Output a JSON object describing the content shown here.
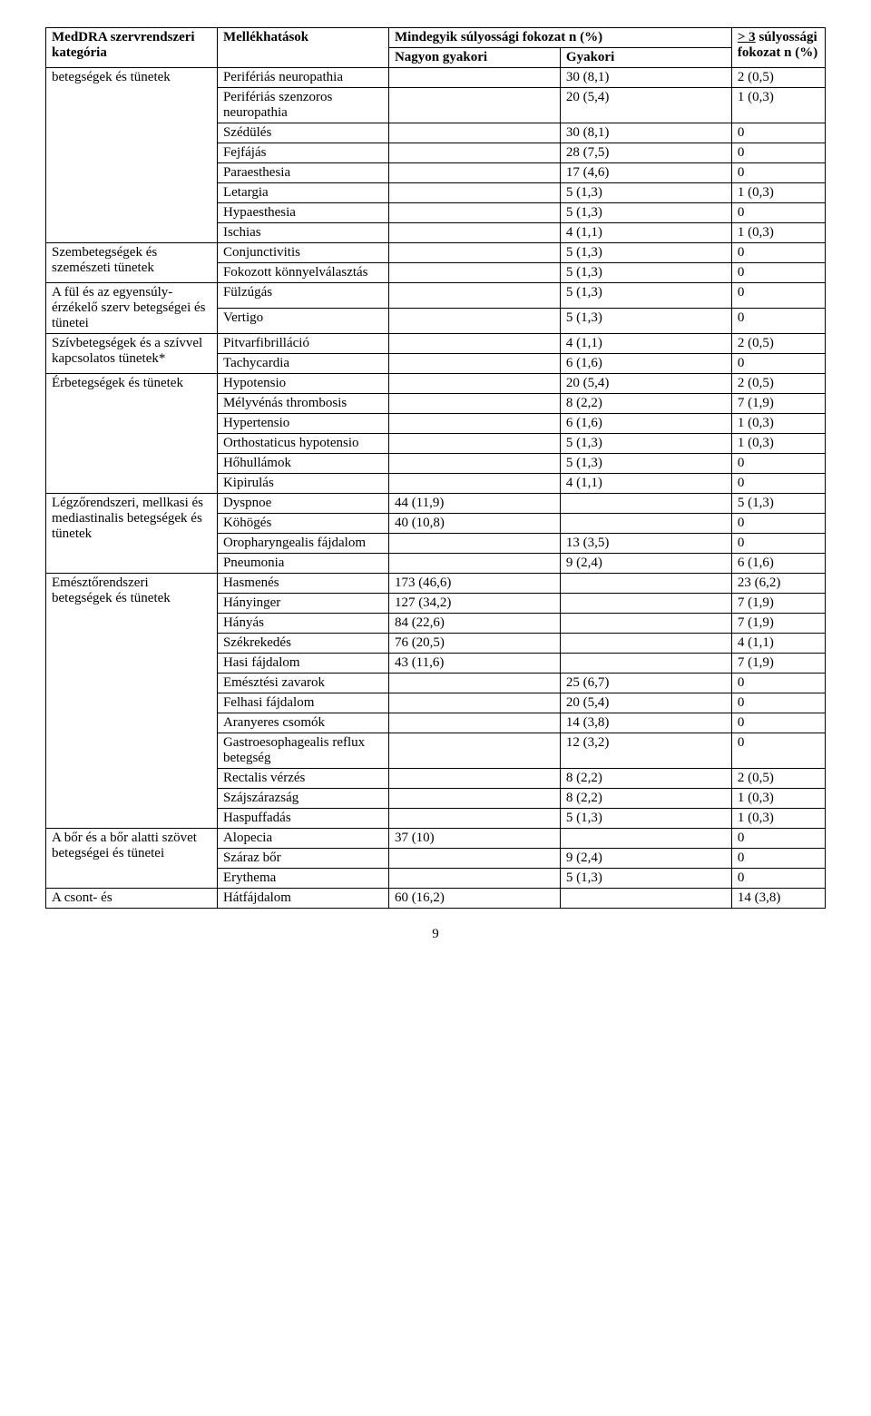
{
  "header": {
    "category": "MedDRA szervrendszeri kategória",
    "effect": "Mellékhatások",
    "all_grades": "Mindegyik súlyossági fokozat\nn (%)",
    "sev_prefix": "> 3",
    "sev_rest": "\nsúlyossági fokozat\nn (%)",
    "very_frequent": "Nagyon gyakori",
    "frequent": "Gyakori"
  },
  "groups": [
    {
      "category": "betegségek és tünetek",
      "rows": [
        {
          "e": "Perifériás neuropathia",
          "vf": "",
          "f": "30 (8,1)",
          "s": "2 (0,5)"
        },
        {
          "e": "Perifériás szenzoros neuropathia",
          "vf": "",
          "f": "20 (5,4)",
          "s": "1 (0,3)"
        },
        {
          "e": "Szédülés",
          "vf": "",
          "f": "30 (8,1)",
          "s": "0"
        },
        {
          "e": "Fejfájás",
          "vf": "",
          "f": "28 (7,5)",
          "s": "0"
        },
        {
          "e": "Paraesthesia",
          "vf": "",
          "f": "17 (4,6)",
          "s": "0"
        },
        {
          "e": "Letargia",
          "vf": "",
          "f": "5 (1,3)",
          "s": "1 (0,3)"
        },
        {
          "e": "Hypaesthesia",
          "vf": "",
          "f": "5 (1,3)",
          "s": "0"
        },
        {
          "e": "Ischias",
          "vf": "",
          "f": "4 (1,1)",
          "s": "1 (0,3)"
        }
      ]
    },
    {
      "category": "Szembetegségek és szemészeti tünetek",
      "rows": [
        {
          "e": "Conjunctivitis",
          "vf": "",
          "f": "5 (1,3)",
          "s": "0"
        },
        {
          "e": "Fokozott könnyelválasztás",
          "vf": "",
          "f": "5 (1,3)",
          "s": "0"
        }
      ]
    },
    {
      "category": "A fül és az egyensúly-érzékelő szerv betegségei és tünetei",
      "rows": [
        {
          "e": "Fülzúgás",
          "vf": "",
          "f": "5 (1,3)",
          "s": "0"
        },
        {
          "e": "Vertigo",
          "vf": "",
          "f": "5 (1,3)",
          "s": "0"
        }
      ]
    },
    {
      "category": "Szívbetegségek és a szívvel kapcsolatos tünetek*",
      "rows": [
        {
          "e": "Pitvarfibrilláció",
          "vf": "",
          "f": "4 (1,1)",
          "s": "2 (0,5)"
        },
        {
          "e": "Tachycardia",
          "vf": "",
          "f": "6 (1,6)",
          "s": "0"
        }
      ]
    },
    {
      "category": "Érbetegségek és tünetek",
      "rows": [
        {
          "e": "Hypotensio",
          "vf": "",
          "f": "20 (5,4)",
          "s": "2 (0,5)"
        },
        {
          "e": "Mélyvénás thrombosis",
          "vf": "",
          "f": "8 (2,2)",
          "s": "7 (1,9)"
        },
        {
          "e": "Hypertensio",
          "vf": "",
          "f": "6 (1,6)",
          "s": "1 (0,3)"
        },
        {
          "e": "Orthostaticus hypotensio",
          "vf": "",
          "f": "5 (1,3)",
          "s": "1 (0,3)"
        },
        {
          "e": "Hőhullámok",
          "vf": "",
          "f": "5 (1,3)",
          "s": "0"
        },
        {
          "e": "Kipirulás",
          "vf": "",
          "f": "4 (1,1)",
          "s": "0"
        }
      ]
    },
    {
      "category": "Légzőrendszeri, mellkasi és mediastinalis betegségek és tünetek",
      "rows": [
        {
          "e": "Dyspnoe",
          "vf": "44 (11,9)",
          "f": "",
          "s": "5 (1,3)"
        },
        {
          "e": "Köhögés",
          "vf": "40 (10,8)",
          "f": "",
          "s": "0"
        },
        {
          "e": "Oropharyngealis fájdalom",
          "vf": "",
          "f": "13 (3,5)",
          "s": "0"
        },
        {
          "e": "Pneumonia",
          "vf": "",
          "f": "9 (2,4)",
          "s": "6 (1,6)"
        }
      ]
    },
    {
      "category": "Emésztőrendszeri betegségek és tünetek",
      "rows": [
        {
          "e": "Hasmenés",
          "vf": "173 (46,6)",
          "f": "",
          "s": "23 (6,2)"
        },
        {
          "e": "Hányinger",
          "vf": "127 (34,2)",
          "f": "",
          "s": "7 (1,9)"
        },
        {
          "e": "Hányás",
          "vf": "84 (22,6)",
          "f": "",
          "s": "7 (1,9)"
        },
        {
          "e": "Székrekedés",
          "vf": "76 (20,5)",
          "f": "",
          "s": "4 (1,1)"
        },
        {
          "e": "Hasi fájdalom",
          "vf": "43 (11,6)",
          "f": "",
          "s": "7 (1,9)"
        },
        {
          "e": "Emésztési zavarok",
          "vf": "",
          "f": "25 (6,7)",
          "s": "0"
        },
        {
          "e": "Felhasi fájdalom",
          "vf": "",
          "f": "20 (5,4)",
          "s": "0"
        },
        {
          "e": "Aranyeres csomók",
          "vf": "",
          "f": "14 (3,8)",
          "s": "0"
        },
        {
          "e": "Gastroesophagealis reflux betegség",
          "vf": "",
          "f": "12 (3,2)",
          "s": "0"
        },
        {
          "e": "Rectalis vérzés",
          "vf": "",
          "f": "8 (2,2)",
          "s": "2 (0,5)"
        },
        {
          "e": "Szájszárazság",
          "vf": "",
          "f": "8 (2,2)",
          "s": "1 (0,3)"
        },
        {
          "e": "Haspuffadás",
          "vf": "",
          "f": "5 (1,3)",
          "s": "1 (0,3)"
        }
      ]
    },
    {
      "category": "A bőr és a bőr alatti szövet betegségei és tünetei",
      "rows": [
        {
          "e": "Alopecia",
          "vf": "37 (10)",
          "f": "",
          "s": "0"
        },
        {
          "e": "Száraz bőr",
          "vf": "",
          "f": "9 (2,4)",
          "s": "0"
        },
        {
          "e": "Erythema",
          "vf": "",
          "f": "5 (1,3)",
          "s": "0"
        }
      ]
    },
    {
      "category": "A csont- és",
      "rows": [
        {
          "e": "Hátfájdalom",
          "vf": "60 (16,2)",
          "f": "",
          "s": "14 (3,8)"
        }
      ]
    }
  ],
  "page_number": "9"
}
